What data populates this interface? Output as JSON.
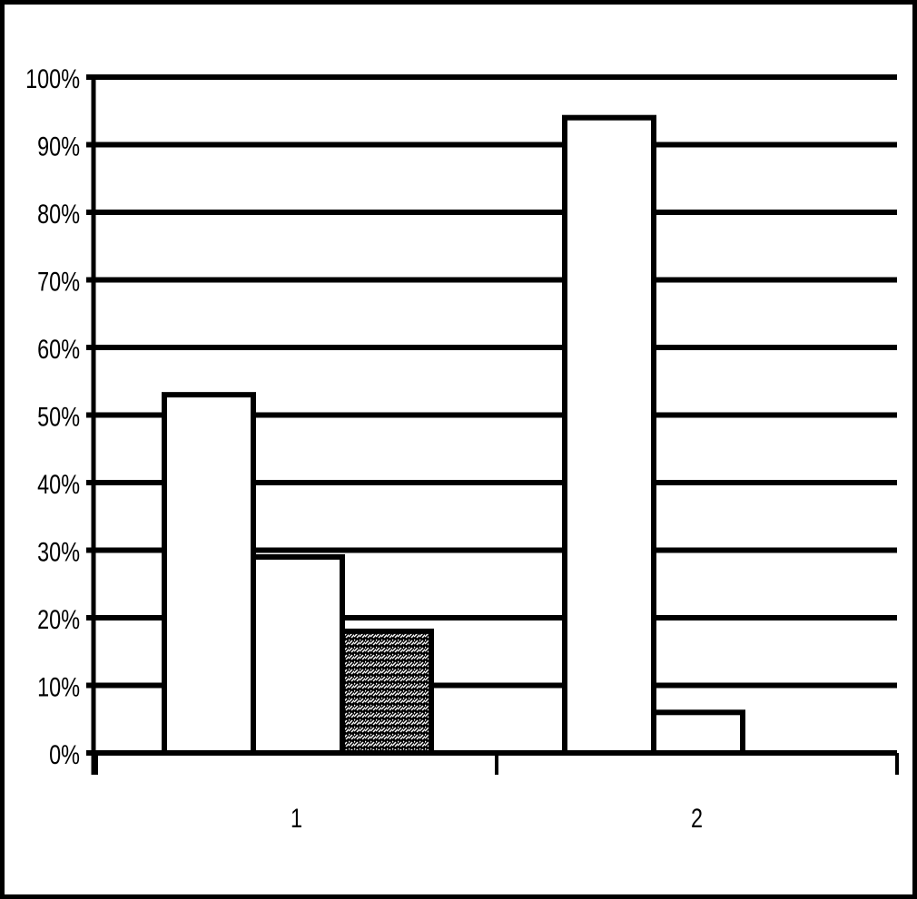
{
  "chart_data": {
    "type": "bar",
    "title": "",
    "xlabel": "",
    "ylabel": "",
    "categories": [
      "1",
      "2"
    ],
    "series": [
      {
        "values": [
          53,
          94
        ],
        "fill": "white"
      },
      {
        "values": [
          29,
          6
        ],
        "fill": "white"
      },
      {
        "values": [
          18,
          0
        ],
        "fill": "hatched"
      }
    ],
    "ylim": [
      0,
      100
    ],
    "yticks": [
      "0%",
      "10%",
      "20%",
      "30%",
      "40%",
      "50%",
      "60%",
      "70%",
      "80%",
      "90%",
      "100%"
    ],
    "grid": true,
    "legend": "none",
    "colors": {
      "bar_stroke": "#000000",
      "bar_fill": "#ffffff",
      "grid": "#000000"
    }
  }
}
